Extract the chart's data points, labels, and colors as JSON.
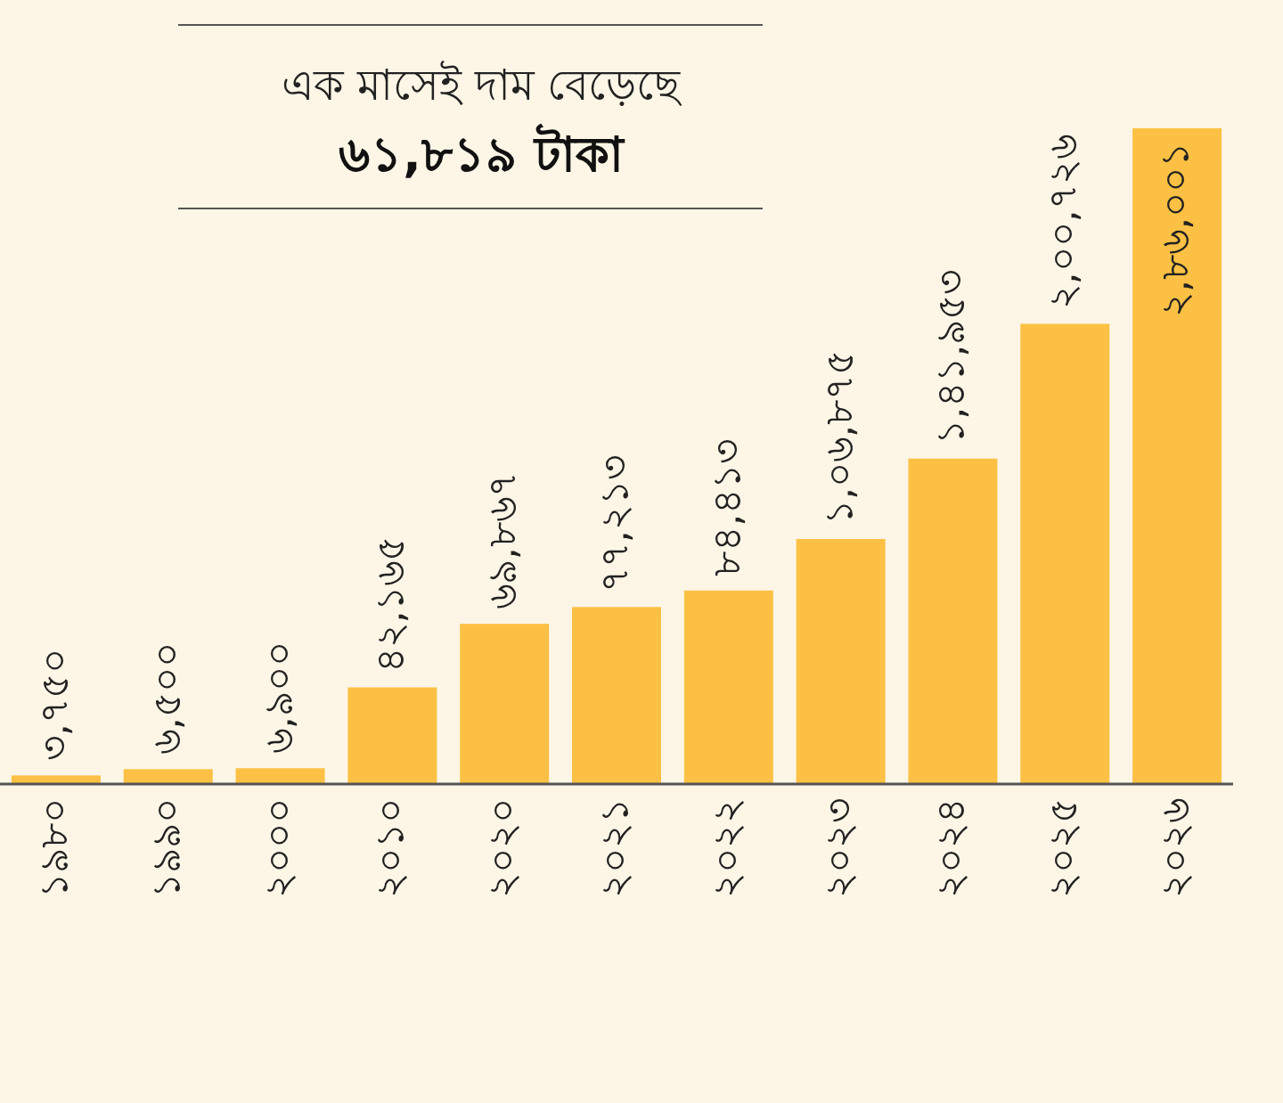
{
  "chart_data": {
    "type": "bar",
    "title": "এক মাসেই দাম বেড়েছে",
    "subtitle": "৬১,৮১৯ টাকা",
    "categories": [
      "১৯৮০",
      "১৯৯০",
      "২০০০",
      "২০১০",
      "২০২০",
      "২০২১",
      "২০২২",
      "২০২৩",
      "২০২৪",
      "২০২৫",
      "২০২৬"
    ],
    "values": [
      3750,
      6500,
      6900,
      42165,
      69867,
      77213,
      84413,
      106875,
      141953,
      200726,
      286001
    ],
    "value_labels": [
      "৩,৭৫০",
      "৬,৫০০",
      "৬,৯০০",
      "৪২,১৬৫",
      "৬৯,৮৬৭",
      "৭৭,২১৩",
      "৮৪,৪১৩",
      "১,০৬,৮৭৫",
      "১,৪১,৯৫৩",
      "২,০০,৭২৬",
      "২,৮৬,০০১"
    ],
    "color": "#fcc144"
  }
}
